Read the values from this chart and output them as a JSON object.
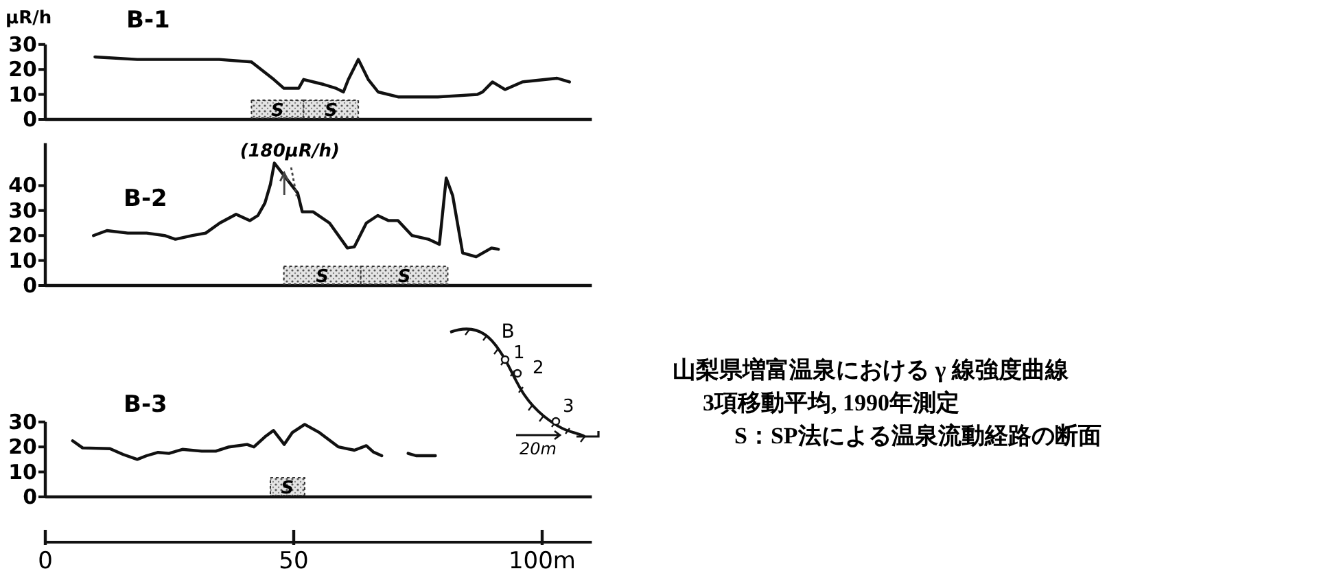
{
  "chart_data": [
    {
      "type": "line",
      "title": "B-1",
      "ylabel": "μR/h",
      "xlim": [
        0,
        110
      ],
      "ylim": [
        0,
        30
      ],
      "yticks": [
        0,
        10,
        20,
        30
      ],
      "tick_labels": "y",
      "x": [
        10,
        18.5,
        27,
        35,
        41.5,
        46,
        48,
        51,
        52,
        56,
        58.5,
        60,
        61,
        63,
        65,
        67,
        71,
        79,
        87,
        88,
        90,
        92.5,
        96,
        103,
        105.5
      ],
      "series": [
        {
          "color": "#111111",
          "values": [
            25,
            24,
            24,
            24,
            23,
            16,
            12.5,
            12.5,
            16,
            14,
            12.5,
            11,
            16,
            24,
            16,
            11,
            9,
            9,
            10,
            11,
            15,
            12,
            15,
            16.5,
            15
          ]
        }
      ],
      "bands": [
        {
          "axis": "x",
          "from": 41.5,
          "to": 52,
          "label": "S"
        },
        {
          "axis": "x",
          "from": 52,
          "to": 63,
          "label": "S"
        }
      ]
    },
    {
      "type": "line",
      "title": "B-2",
      "xlim": [
        0,
        110
      ],
      "ylim": [
        0,
        57
      ],
      "yticks": [
        0,
        10,
        20,
        30,
        40
      ],
      "tick_labels": "y",
      "x": [
        9.7,
        12.4,
        16.6,
        20.4,
        24,
        26.2,
        29.6,
        32.3,
        35.1,
        38.4,
        41.2,
        42.8,
        44.2,
        45.3,
        46.1,
        50.8,
        51.7,
        53.9,
        57.2,
        60.8,
        62.2,
        64.6,
        66.9,
        69.1,
        71,
        73.8,
        77.1,
        79.3,
        80.7,
        82,
        84,
        86.7,
        89.8,
        91.2
      ],
      "series": [
        {
          "color": "#111111",
          "values": [
            20,
            22,
            21,
            21,
            20,
            18.5,
            20,
            21,
            25,
            28.5,
            26,
            28,
            33,
            40.5,
            49,
            37,
            29.5,
            29.5,
            25,
            15,
            15.5,
            25,
            28,
            26,
            26,
            20,
            18.5,
            16.5,
            43,
            36,
            13,
            11.5,
            15,
            14.5
          ]
        }
      ],
      "bands": [
        {
          "axis": "x",
          "from": 48,
          "to": 63.5,
          "label": "S"
        },
        {
          "axis": "x",
          "from": 63.5,
          "to": 81,
          "label": "S"
        }
      ],
      "annotations": [
        "(180μR/h)"
      ]
    },
    {
      "type": "line",
      "title": "B-3",
      "xlim": [
        0,
        110
      ],
      "ylim": [
        0,
        30
      ],
      "yticks": [
        0,
        10,
        20,
        30
      ],
      "xticks": [
        0,
        50,
        {
          "value": 100,
          "label": "100m"
        }
      ],
      "series": [
        {
          "color": "#111111",
          "x": [
            5.5,
            7.5,
            13,
            15.7,
            18.5,
            20.4,
            22.7,
            24.9,
            27.6,
            31.5,
            34.3,
            37,
            40.6,
            42,
            44.2,
            45.9,
            48.1,
            49.7,
            52.2,
            55.2,
            59,
            62.2,
            64.6,
            66,
            67.7
          ],
          "values": [
            22.5,
            19.6,
            19.3,
            17,
            15,
            16.5,
            17.8,
            17.4,
            19,
            18.3,
            18.3,
            20,
            21,
            20,
            24,
            26.6,
            21,
            25.7,
            29,
            25.7,
            20,
            18.7,
            20.5,
            18,
            16.5
          ]
        },
        {
          "color": "#111111",
          "x": [
            73,
            74.6,
            78.5
          ],
          "values": [
            17.4,
            16.5,
            16.5
          ]
        }
      ],
      "bands": [
        {
          "axis": "x",
          "from": 45.3,
          "to": 52.2,
          "label": "S"
        }
      ],
      "annotations": [
        "B",
        "1",
        "2",
        "3",
        "20m",
        "山梨県増富温泉における γ 線強度曲線",
        "3項移動平均, 1990年測定",
        "S：SP法による温泉流動経路の断面"
      ]
    }
  ]
}
